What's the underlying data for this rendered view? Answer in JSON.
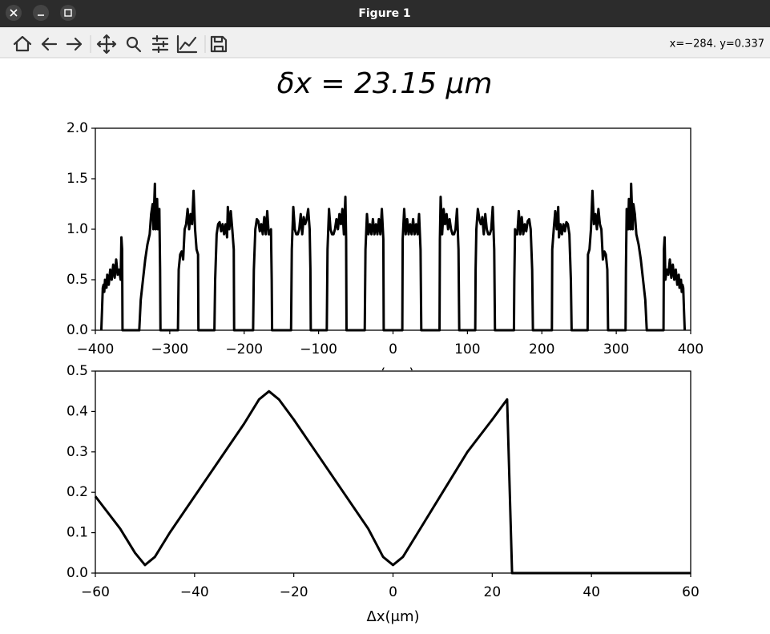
{
  "window": {
    "title": "Figure 1",
    "status": "x=−284. y=0.337"
  },
  "figure_title": "δx = 23.15 μm",
  "chart_data": [
    {
      "type": "line",
      "xlabel": "x(μm)",
      "color": "#000000",
      "x": [
        -392,
        -391,
        -390,
        -389,
        -388,
        -387,
        -385,
        -384,
        -382,
        -380,
        -378,
        -376,
        -374,
        -372,
        -370,
        -368,
        -366,
        -365,
        -364,
        -363.5,
        -341,
        -339,
        -336,
        -333,
        -330,
        -327,
        -325,
        -323,
        -322,
        -320,
        -319,
        -317,
        -316,
        -314,
        -313,
        -312.5,
        -289,
        -288,
        -286,
        -284,
        -282,
        -280,
        -278,
        -276,
        -274,
        -272,
        -270,
        -268,
        -266,
        -264,
        -262,
        -261.5,
        -240,
        -239,
        -237,
        -235,
        -233,
        -231,
        -229,
        -227,
        -225,
        -223,
        -222,
        -220,
        -218,
        -216,
        -214,
        -213.5,
        -188,
        -187,
        -185,
        -183,
        -181,
        -179,
        -177,
        -175,
        -173,
        -171,
        -169,
        -167,
        -165,
        -164,
        -163,
        -162.5,
        -137,
        -136,
        -134,
        -132,
        -130,
        -128,
        -126,
        -124,
        -122,
        -120,
        -118,
        -116,
        -114,
        -112,
        -111,
        -110.5,
        -89,
        -88,
        -86,
        -84,
        -82,
        -80,
        -78,
        -76,
        -74,
        -72,
        -70,
        -68,
        -66,
        -64,
        -63,
        -62.5,
        -38,
        -37,
        -35,
        -33,
        -31,
        -29,
        -27,
        -25,
        -23,
        -21,
        -19,
        -17,
        -15,
        -13,
        -12.5,
        12.5,
        13,
        15,
        17,
        19,
        21,
        23,
        25,
        27,
        29,
        31,
        33,
        35,
        37,
        38,
        62.5,
        63,
        64,
        66,
        68,
        70,
        72,
        74,
        76,
        78,
        80,
        82,
        84,
        86,
        88,
        89,
        110.5,
        111,
        112,
        114,
        116,
        118,
        120,
        122,
        124,
        126,
        128,
        130,
        132,
        134,
        136,
        137,
        162.5,
        163,
        164,
        165,
        167,
        169,
        171,
        173,
        175,
        177,
        179,
        181,
        183,
        185,
        187,
        188,
        213.5,
        214,
        216,
        218,
        220,
        222,
        223,
        225,
        227,
        229,
        231,
        233,
        235,
        237,
        239,
        240,
        261.5,
        262,
        264,
        266,
        268,
        270,
        272,
        274,
        276,
        278,
        280,
        282,
        284,
        286,
        288,
        289,
        312.5,
        313,
        314,
        316,
        317,
        319,
        320,
        322,
        323,
        325,
        327,
        330,
        333,
        336,
        339,
        341,
        363.5,
        364,
        365,
        366,
        368,
        370,
        372,
        374,
        376,
        378,
        380,
        382,
        384,
        385,
        387,
        388,
        389,
        390,
        391,
        392
      ],
      "values": [
        0,
        0.2,
        0.42,
        0.45,
        0.38,
        0.5,
        0.42,
        0.55,
        0.45,
        0.6,
        0.5,
        0.65,
        0.52,
        0.7,
        0.55,
        0.6,
        0.5,
        0.92,
        0.8,
        0,
        0,
        0.3,
        0.5,
        0.7,
        0.85,
        0.95,
        1.15,
        1.25,
        1.0,
        1.45,
        1.0,
        1.3,
        1.0,
        1.2,
        0.6,
        0,
        0,
        0.6,
        0.75,
        0.78,
        0.7,
        1.0,
        1.05,
        1.2,
        1.0,
        1.15,
        1.05,
        1.38,
        1.0,
        0.8,
        0.75,
        0,
        0,
        0.5,
        0.95,
        1.05,
        1.07,
        0.98,
        1.05,
        0.95,
        1.05,
        0.92,
        1.22,
        1.0,
        1.18,
        1.0,
        0.8,
        0,
        0,
        0.6,
        1.0,
        1.1,
        1.08,
        0.98,
        1.05,
        0.95,
        1.12,
        0.95,
        1.18,
        0.95,
        0.95,
        1.0,
        0.5,
        0,
        0,
        0.8,
        1.22,
        1.0,
        0.95,
        0.95,
        1.0,
        1.15,
        0.95,
        1.12,
        1.05,
        1.1,
        1.2,
        1.0,
        0.6,
        0,
        0,
        0.8,
        1.2,
        1.0,
        0.95,
        0.95,
        1.0,
        1.1,
        1.0,
        1.15,
        1.05,
        1.2,
        0.95,
        1.32,
        0.9,
        0,
        0,
        0.8,
        1.15,
        0.95,
        1.05,
        0.95,
        1.1,
        0.95,
        1.05,
        0.95,
        1.1,
        0.95,
        1.2,
        0.9,
        0,
        0,
        0.9,
        1.2,
        0.95,
        1.1,
        0.95,
        1.05,
        0.95,
        1.1,
        0.95,
        1.05,
        0.95,
        1.15,
        0.8,
        0,
        0,
        0.9,
        1.32,
        0.95,
        1.2,
        1.05,
        1.15,
        1.0,
        1.1,
        1.0,
        0.95,
        0.95,
        1.0,
        1.2,
        0.8,
        0,
        0,
        0.6,
        1.0,
        1.2,
        1.1,
        1.05,
        1.12,
        0.95,
        1.15,
        1.0,
        0.95,
        0.95,
        1.0,
        1.22,
        0.8,
        0,
        0,
        0.5,
        1.0,
        0.95,
        0.95,
        1.18,
        0.95,
        1.12,
        0.95,
        1.05,
        0.98,
        1.08,
        1.1,
        1.0,
        0.6,
        0,
        0,
        0.8,
        1.0,
        1.18,
        1.0,
        1.22,
        0.92,
        1.05,
        0.95,
        1.05,
        0.98,
        1.07,
        1.05,
        0.95,
        0.5,
        0,
        0,
        0.75,
        0.8,
        1.0,
        1.38,
        1.05,
        1.15,
        1.0,
        1.2,
        1.05,
        1.0,
        0.7,
        0.78,
        0.75,
        0.6,
        0,
        0,
        0.6,
        1.2,
        1.0,
        1.3,
        1.0,
        1.45,
        1.0,
        1.25,
        1.15,
        0.95,
        0.85,
        0.7,
        0.5,
        0.3,
        0,
        0,
        0.8,
        0.92,
        0.5,
        0.6,
        0.55,
        0.7,
        0.52,
        0.65,
        0.5,
        0.6,
        0.45,
        0.55,
        0.42,
        0.5,
        0.38,
        0.45,
        0.42,
        0.2,
        0
      ],
      "xlim": [
        -400,
        400
      ],
      "xticks": [
        {
          "value": -400,
          "label": "−400"
        },
        {
          "value": -300,
          "label": "−300"
        },
        {
          "value": -200,
          "label": "−200"
        },
        {
          "value": -100,
          "label": "−100"
        },
        0,
        100,
        200,
        300,
        400
      ],
      "ylim": [
        0,
        2
      ],
      "yticks": [
        {
          "value": 0,
          "label": "0.0"
        },
        {
          "value": 0.5,
          "label": "0.5"
        },
        {
          "value": 1,
          "label": "1.0"
        },
        {
          "value": 1.5,
          "label": "1.5"
        },
        {
          "value": 2,
          "label": "2.0"
        }
      ]
    },
    {
      "type": "line",
      "xlabel": "Δx(μm)",
      "color": "#000000",
      "x": [
        -60,
        -55,
        -52,
        -50,
        -48,
        -45,
        -40,
        -35,
        -30,
        -27,
        -25,
        -23,
        -20,
        -15,
        -10,
        -5,
        -2,
        0,
        2,
        5,
        10,
        15,
        20,
        23,
        24,
        30,
        40,
        50,
        60
      ],
      "values": [
        0.19,
        0.11,
        0.05,
        0.02,
        0.04,
        0.1,
        0.19,
        0.28,
        0.37,
        0.43,
        0.45,
        0.43,
        0.38,
        0.29,
        0.2,
        0.11,
        0.04,
        0.02,
        0.04,
        0.1,
        0.2,
        0.3,
        0.38,
        0.43,
        0,
        0,
        0,
        0,
        0
      ],
      "xlim": [
        -60,
        60
      ],
      "xticks": [
        {
          "value": -60,
          "label": "−60"
        },
        {
          "value": -40,
          "label": "−40"
        },
        {
          "value": -20,
          "label": "−20"
        },
        0,
        20,
        40,
        60
      ],
      "ylim": [
        0,
        0.5
      ],
      "yticks": [
        {
          "value": 0,
          "label": "0.0"
        },
        {
          "value": 0.1,
          "label": "0.1"
        },
        {
          "value": 0.2,
          "label": "0.2"
        },
        {
          "value": 0.3,
          "label": "0.3"
        },
        {
          "value": 0.4,
          "label": "0.4"
        },
        {
          "value": 0.5,
          "label": "0.5"
        }
      ]
    }
  ]
}
